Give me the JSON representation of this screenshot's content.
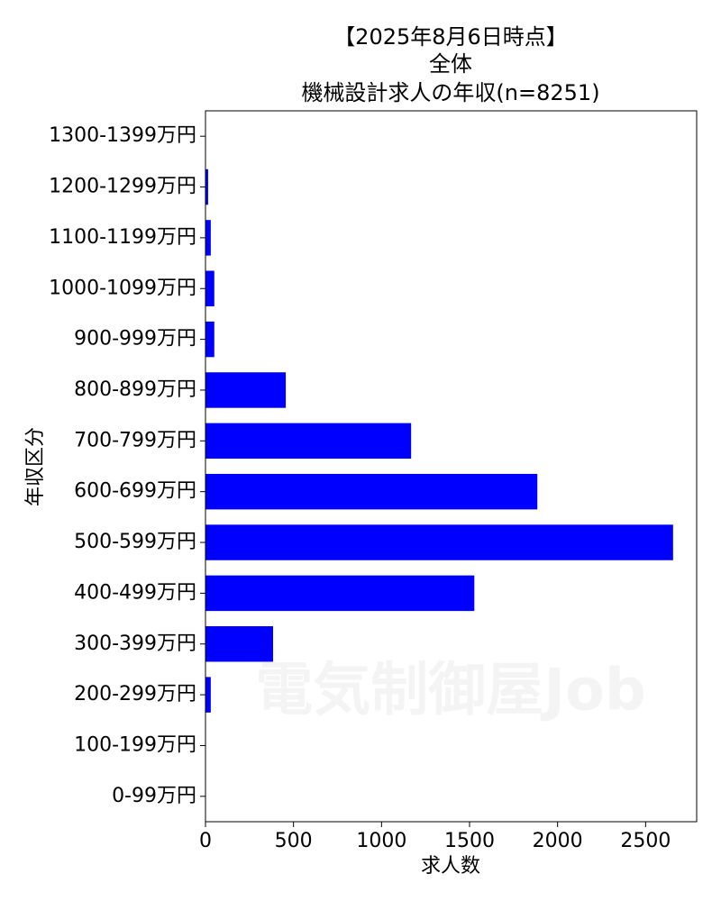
{
  "chart_data": {
    "type": "barh",
    "title": [
      "【2025年8月6日時点】",
      "全体",
      "機械設計求人の年収(n=8251)"
    ],
    "x_label": "求人数",
    "y_label": "年収区分",
    "watermark": "電気制御屋Job",
    "categories": [
      "0-99万円",
      "100-199万円",
      "200-299万円",
      "300-399万円",
      "400-499万円",
      "500-599万円",
      "600-699万円",
      "700-799万円",
      "800-899万円",
      "900-999万円",
      "1000-1099万円",
      "1100-1199万円",
      "1200-1299万円",
      "1300-1399万円"
    ],
    "values": [
      0,
      0,
      30,
      384,
      1527,
      2656,
      1885,
      1168,
      456,
      50,
      50,
      30,
      15,
      0
    ],
    "color": "#0000ff",
    "xlim": [
      0,
      2790
    ],
    "xticks": [
      0,
      500,
      1000,
      1500,
      2000,
      2500
    ]
  }
}
